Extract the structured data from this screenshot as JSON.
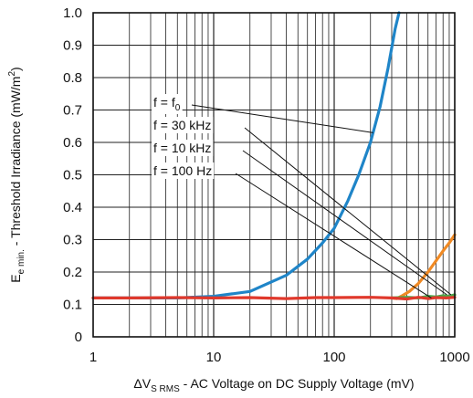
{
  "chart_data": {
    "type": "line",
    "xscale": "log",
    "xlim": [
      1,
      1000
    ],
    "ylim": [
      0,
      1.0
    ],
    "grid": true,
    "xticks": [
      1,
      10,
      100,
      1000
    ],
    "xtick_labels": [
      "1",
      "10",
      "100",
      "1000"
    ],
    "yticks": [
      0,
      0.1,
      0.2,
      0.3,
      0.4,
      0.5,
      0.6,
      0.7,
      0.8,
      0.9,
      1.0
    ],
    "ytick_labels": [
      "0",
      "0.1",
      "0.2",
      "0.3",
      "0.4",
      "0.5",
      "0.6",
      "0.7",
      "0.8",
      "0.9",
      "1.0"
    ],
    "ylabel": {
      "main": "E",
      "sub": "e min.",
      "rest": " - Threshold Irradiance (mW/m",
      "sup": "2",
      "close": ")"
    },
    "xlabel": {
      "prefix": "ΔV",
      "sub": "S RMS",
      "rest": " - AC Voltage on DC Supply Voltage (mV)"
    },
    "annotations": [
      {
        "text": "f = f",
        "sub": "0",
        "points_to": [
          210,
          0.63
        ]
      },
      {
        "text": "f = 30 kHz",
        "sub": "",
        "points_to": [
          930,
          0.13
        ]
      },
      {
        "text": "f = 10 kHz",
        "sub": "",
        "points_to": [
          860,
          0.13
        ]
      },
      {
        "text": "f = 100 Hz",
        "sub": "",
        "points_to": [
          640,
          0.12
        ]
      }
    ],
    "series": [
      {
        "color": "#1f85c8",
        "points": [
          [
            1,
            0.12
          ],
          [
            5,
            0.12
          ],
          [
            10,
            0.125
          ],
          [
            20,
            0.14
          ],
          [
            40,
            0.19
          ],
          [
            60,
            0.24
          ],
          [
            80,
            0.29
          ],
          [
            100,
            0.335
          ],
          [
            130,
            0.42
          ],
          [
            160,
            0.5
          ],
          [
            200,
            0.6
          ],
          [
            240,
            0.71
          ],
          [
            280,
            0.83
          ],
          [
            320,
            0.95
          ],
          [
            345,
            1.0
          ]
        ]
      },
      {
        "color": "#f08a24",
        "points": [
          [
            300,
            0.12
          ],
          [
            330,
            0.118
          ],
          [
            360,
            0.125
          ],
          [
            420,
            0.14
          ],
          [
            500,
            0.165
          ],
          [
            600,
            0.2
          ],
          [
            700,
            0.235
          ],
          [
            800,
            0.265
          ],
          [
            900,
            0.29
          ],
          [
            1000,
            0.315
          ]
        ]
      },
      {
        "color": "#4aa84a",
        "points": [
          [
            300,
            0.12
          ],
          [
            400,
            0.122
          ],
          [
            500,
            0.12
          ],
          [
            600,
            0.125
          ],
          [
            700,
            0.123
          ],
          [
            800,
            0.127
          ],
          [
            900,
            0.125
          ],
          [
            1000,
            0.13
          ]
        ]
      },
      {
        "color": "#e0382b",
        "points": [
          [
            1,
            0.12
          ],
          [
            2,
            0.12
          ],
          [
            5,
            0.121
          ],
          [
            10,
            0.12
          ],
          [
            20,
            0.121
          ],
          [
            40,
            0.118
          ],
          [
            70,
            0.121
          ],
          [
            100,
            0.121
          ],
          [
            200,
            0.122
          ],
          [
            300,
            0.12
          ],
          [
            400,
            0.117
          ],
          [
            500,
            0.122
          ],
          [
            600,
            0.118
          ],
          [
            700,
            0.121
          ],
          [
            850,
            0.12
          ],
          [
            1000,
            0.122
          ]
        ]
      }
    ]
  }
}
